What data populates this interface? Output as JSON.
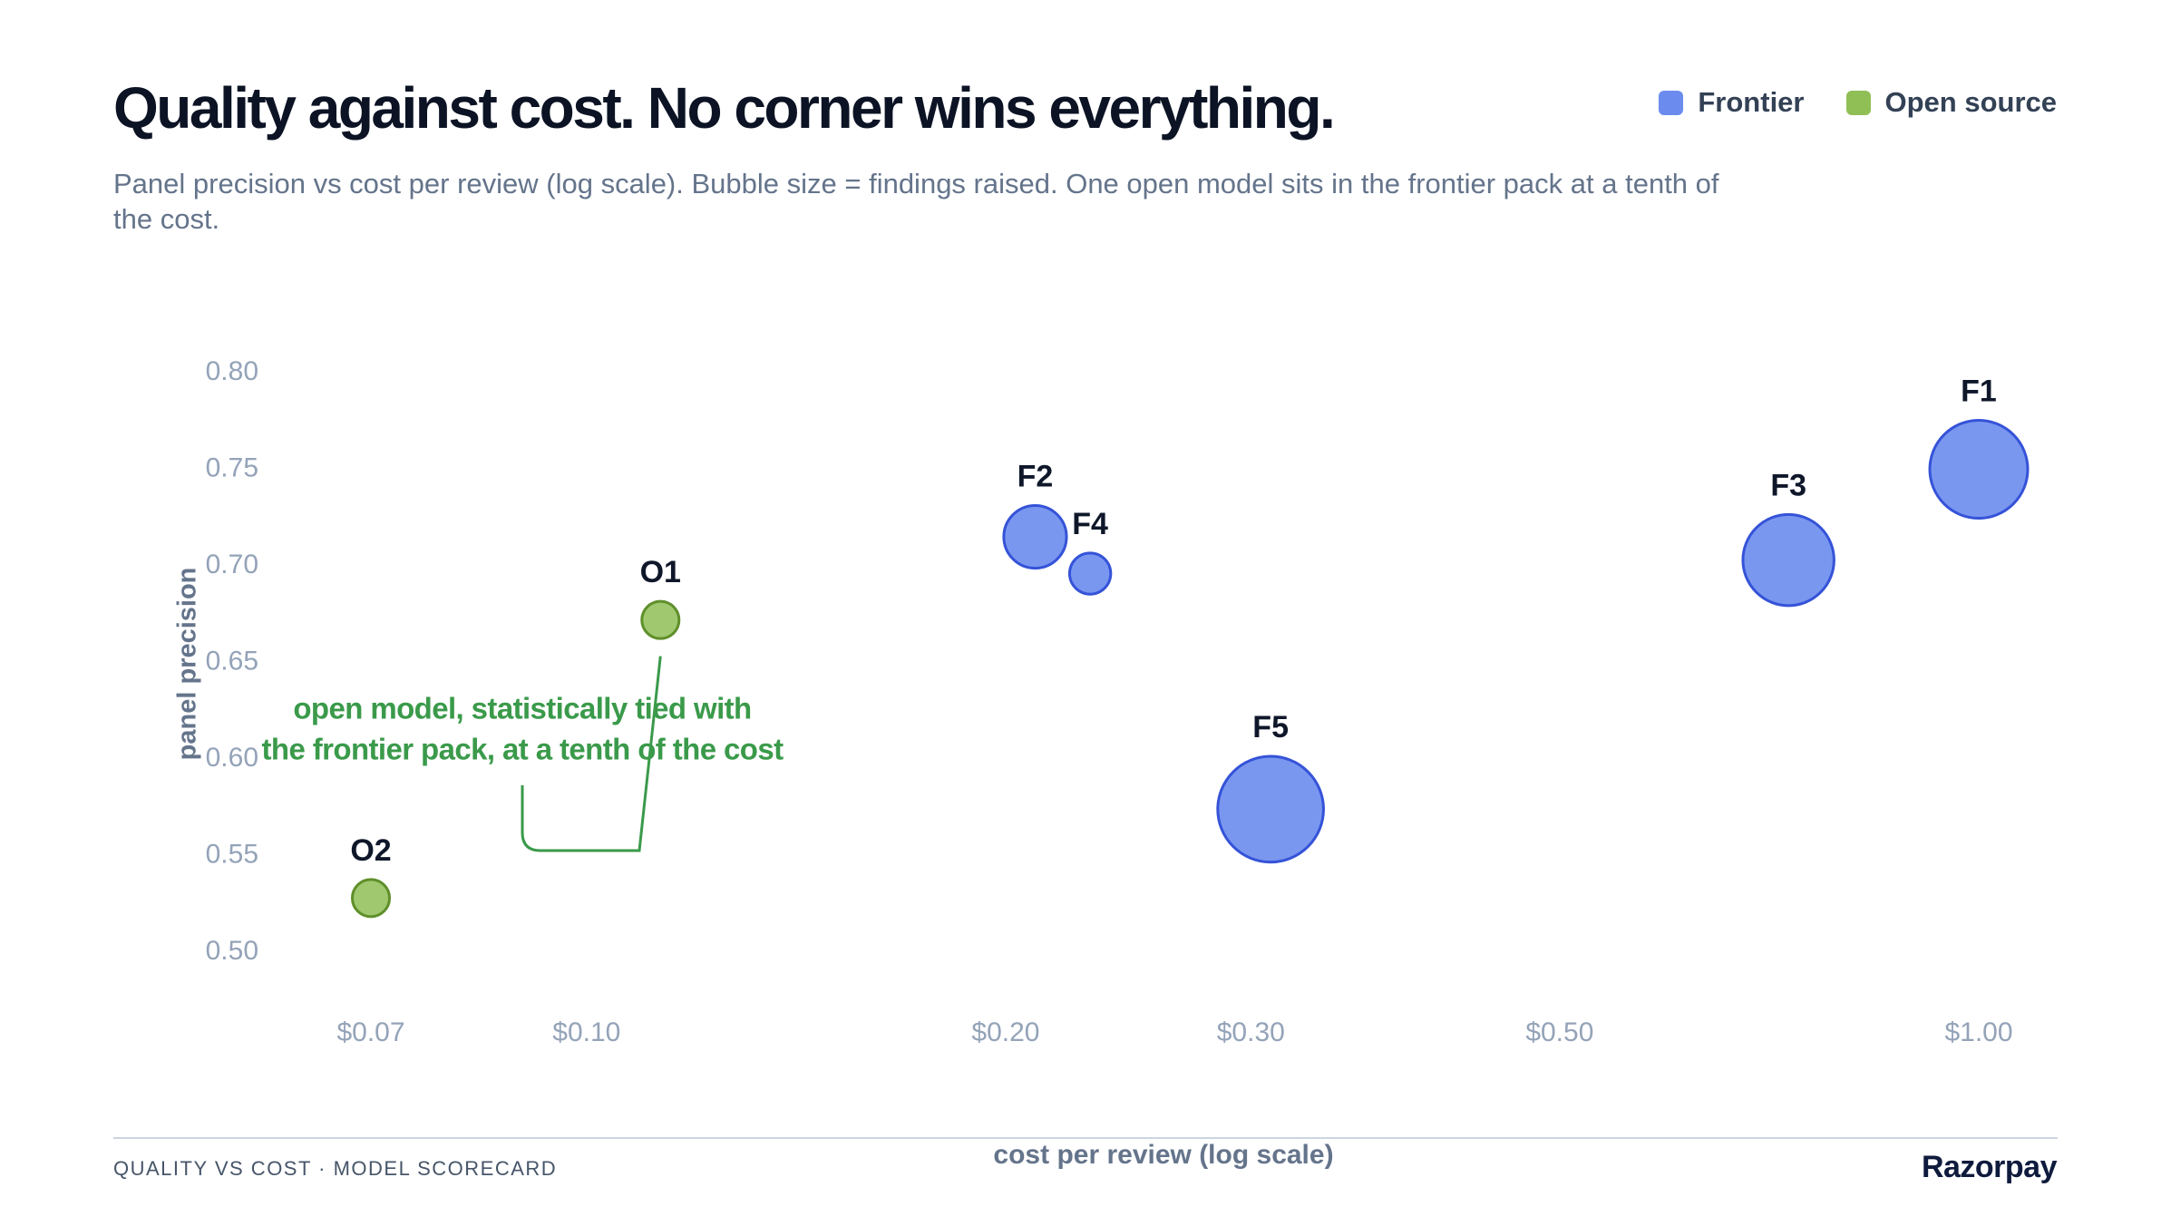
{
  "header": {
    "title": "Quality against cost. No corner wins everything.",
    "subtitle": "Panel precision vs cost per review (log scale). Bubble size = findings raised. One open model sits in the frontier pack at a tenth of the cost."
  },
  "legend": [
    {
      "label": "Frontier",
      "color": "#6b8cee"
    },
    {
      "label": "Open source",
      "color": "#8fbf55"
    }
  ],
  "footer": {
    "left": "QUALITY VS COST · MODEL SCORECARD",
    "brand": "Razorpay"
  },
  "chart_data": {
    "type": "scatter",
    "title": "",
    "xlabel": "cost per review (log scale)",
    "ylabel": "panel precision",
    "x_scale": "log",
    "xlim": [
      0.062,
      1.1
    ],
    "ylim": [
      0.48,
      0.82
    ],
    "grid": false,
    "legend_position": "top-right",
    "x_ticks": [
      {
        "value": 0.07,
        "label": "$0.07"
      },
      {
        "value": 0.1,
        "label": "$0.10"
      },
      {
        "value": 0.2,
        "label": "$0.20"
      },
      {
        "value": 0.3,
        "label": "$0.30"
      },
      {
        "value": 0.5,
        "label": "$0.50"
      },
      {
        "value": 1.0,
        "label": "$1.00"
      }
    ],
    "y_ticks": [
      {
        "value": 0.8,
        "label": "0.80"
      },
      {
        "value": 0.75,
        "label": "0.75"
      },
      {
        "value": 0.7,
        "label": "0.70"
      },
      {
        "value": 0.65,
        "label": "0.65"
      },
      {
        "value": 0.6,
        "label": "0.60"
      },
      {
        "value": 0.55,
        "label": "0.55"
      },
      {
        "value": 0.5,
        "label": "0.50"
      }
    ],
    "series": [
      {
        "name": "Frontier",
        "color": "#6b8cee",
        "stroke": "#3553d8",
        "points": [
          {
            "label": "F1",
            "x": 1.0,
            "y": 0.75,
            "size": 1.0
          },
          {
            "label": "F2",
            "x": 0.21,
            "y": 0.715,
            "size": 0.64
          },
          {
            "label": "F3",
            "x": 0.73,
            "y": 0.703,
            "size": 0.93
          },
          {
            "label": "F4",
            "x": 0.23,
            "y": 0.696,
            "size": 0.42
          },
          {
            "label": "F5",
            "x": 0.31,
            "y": 0.574,
            "size": 1.08
          }
        ]
      },
      {
        "name": "Open source",
        "color": "#95c25f",
        "stroke": "#5f8f2a",
        "points": [
          {
            "label": "O1",
            "x": 0.113,
            "y": 0.672,
            "size": 0.38
          },
          {
            "label": "O2",
            "x": 0.07,
            "y": 0.528,
            "size": 0.38
          }
        ]
      }
    ],
    "annotations": [
      {
        "text_lines": [
          "open model, statistically tied with",
          "the frontier pack, at a tenth of the cost"
        ],
        "color": "#3a9a4a",
        "target": "O1"
      }
    ]
  }
}
